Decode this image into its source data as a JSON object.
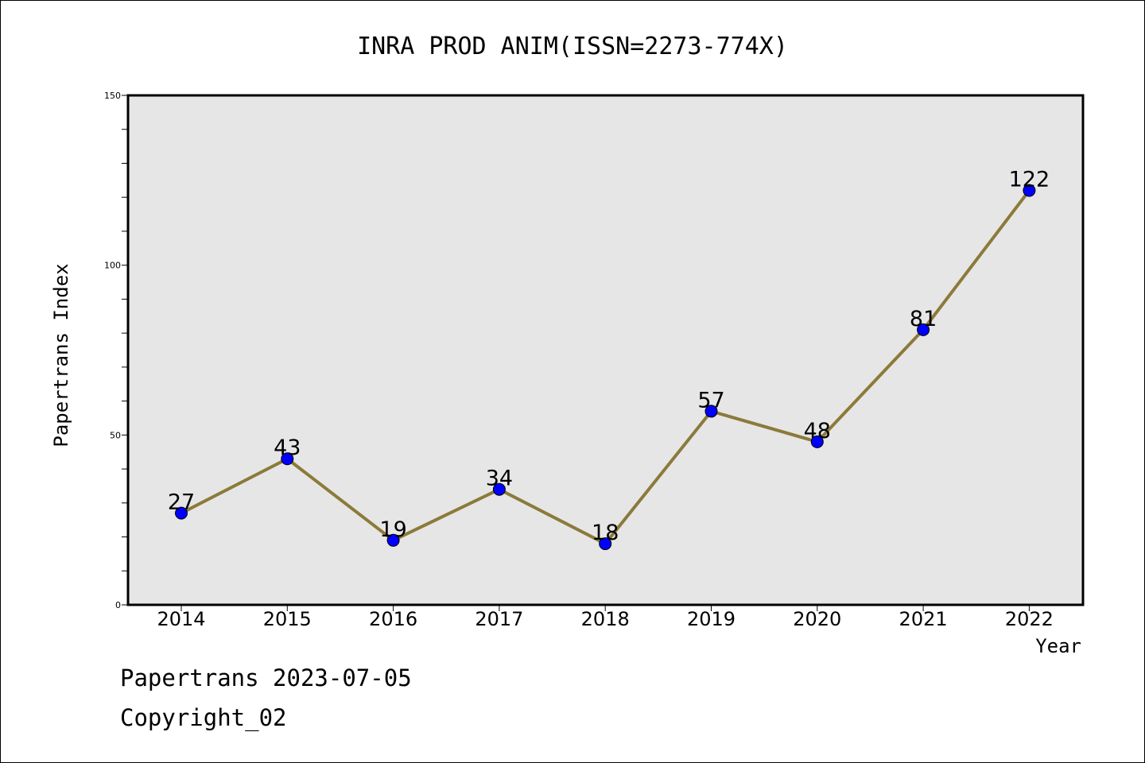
{
  "chart_data": {
    "type": "line",
    "title": "INRA PROD ANIM(ISSN=2273-774X)",
    "xlabel": "Year",
    "ylabel": "Papertrans Index",
    "categories": [
      "2014",
      "2015",
      "2016",
      "2017",
      "2018",
      "2019",
      "2020",
      "2021",
      "2022"
    ],
    "series": [
      {
        "values": [
          27,
          43,
          19,
          34,
          18,
          57,
          48,
          81,
          122
        ]
      }
    ],
    "data_labels": [
      "27",
      "43",
      "19",
      "34",
      "18",
      "57",
      "48",
      "81",
      "122"
    ],
    "ylim": [
      0,
      150
    ],
    "yticks": [
      "0",
      "50",
      "100",
      "150"
    ],
    "ytick_values": [
      0,
      50,
      100,
      150
    ],
    "y_minor_step": 10,
    "grid": false,
    "legend": "none",
    "colors": {
      "line": "#8b7a3a",
      "marker": "#0000ff",
      "plot_background": "#e6e6e6"
    }
  },
  "footer": {
    "date_line": "Papertrans 2023-07-05",
    "copyright_line": "Copyright_02"
  }
}
